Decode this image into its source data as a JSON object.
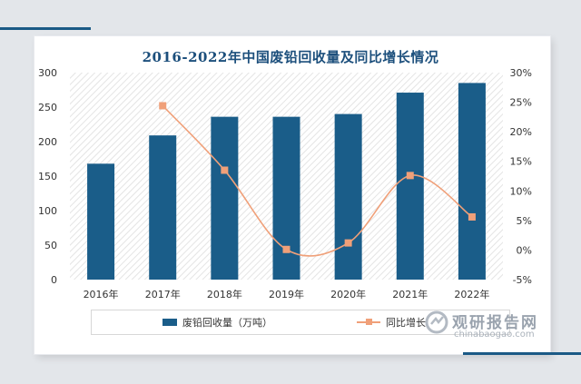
{
  "chart_data": {
    "type": "bar",
    "title": "2016-2022年中国废铅回收量及同比增长情况",
    "categories": [
      "2016年",
      "2017年",
      "2018年",
      "2019年",
      "2020年",
      "2021年",
      "2022年"
    ],
    "series": [
      {
        "name": "废铅回收量（万吨）",
        "type": "bar",
        "axis": "left",
        "values": [
          168,
          209,
          236,
          236,
          240,
          271,
          285
        ]
      },
      {
        "name": "同比增长",
        "type": "line",
        "axis": "right",
        "values": [
          null,
          24.4,
          13.5,
          0.1,
          1.2,
          12.6,
          5.6
        ]
      }
    ],
    "y_left": {
      "ylim": [
        0,
        300
      ],
      "ticks": [
        0,
        50,
        100,
        150,
        200,
        250,
        300
      ]
    },
    "y_right": {
      "ylim": [
        -5,
        30
      ],
      "ticks": [
        "-5%",
        "0%",
        "5%",
        "10%",
        "15%",
        "20%",
        "25%",
        "30%"
      ]
    },
    "legend_position": "bottom",
    "colors": {
      "bar": "#1a5d89",
      "line": "#f0a079"
    }
  },
  "watermark": {
    "name": "观研报告网",
    "url": "chinabaogao.com"
  }
}
